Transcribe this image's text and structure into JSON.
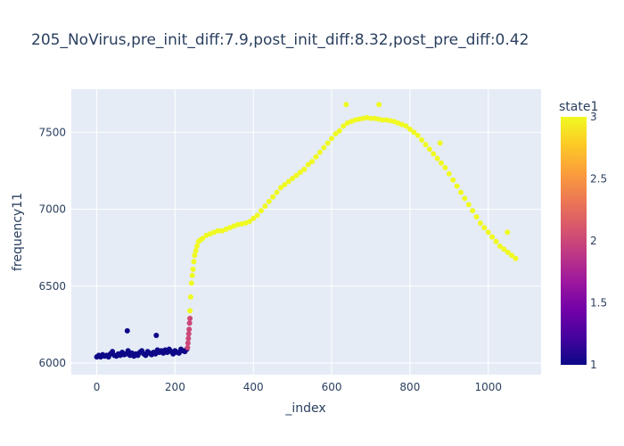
{
  "chart_data": {
    "type": "scatter",
    "title": "205_NoVirus,pre_init_diff:7.9,post_init_diff:8.32,post_pre_diff:0.42",
    "xlabel": "_index",
    "ylabel": "frequency11",
    "xlim": [
      -65,
      1135
    ],
    "ylim": [
      5925,
      7780
    ],
    "xticks": [
      0,
      200,
      400,
      600,
      800,
      1000
    ],
    "yticks": [
      6000,
      6500,
      7000,
      7500
    ],
    "grid": true,
    "plot_background": "#E5ECF6",
    "colorbar": {
      "title": "state1",
      "range": [
        1,
        3
      ],
      "ticks": [
        1,
        1.5,
        2,
        2.5,
        3
      ],
      "tick_labels": [
        "1",
        "1.5",
        "2",
        "2.5",
        "3"
      ],
      "colorscale": [
        "#0d0887",
        "#46039f",
        "#7201a8",
        "#9c179e",
        "#bd3786",
        "#d8576b",
        "#ed7953",
        "#fb9f3a",
        "#fdca26",
        "#f0f921"
      ]
    },
    "series": [
      {
        "state": 1,
        "color": "#0d0887",
        "x": [
          0,
          5,
          10,
          15,
          20,
          25,
          30,
          35,
          40,
          45,
          50,
          55,
          60,
          65,
          70,
          75,
          78,
          80,
          85,
          90,
          95,
          100,
          105,
          110,
          115,
          120,
          125,
          130,
          135,
          140,
          145,
          150,
          152,
          155,
          160,
          165,
          170,
          175,
          180,
          185,
          190,
          195,
          200,
          205,
          210,
          215,
          220,
          225,
          230
        ],
        "y": [
          6040,
          6050,
          6040,
          6055,
          6045,
          6050,
          6040,
          6060,
          6075,
          6050,
          6045,
          6060,
          6050,
          6070,
          6055,
          6060,
          6210,
          6080,
          6050,
          6065,
          6045,
          6060,
          6050,
          6070,
          6080,
          6060,
          6050,
          6075,
          6065,
          6055,
          6070,
          6060,
          6180,
          6085,
          6070,
          6080,
          6065,
          6085,
          6070,
          6090,
          6075,
          6060,
          6080,
          6070,
          6065,
          6090,
          6080,
          6075,
          6090
        ]
      },
      {
        "state": 2,
        "color": "#cc4778",
        "x": [
          232,
          233,
          234,
          235,
          236,
          237,
          238
        ],
        "y": [
          6100,
          6130,
          6160,
          6190,
          6220,
          6260,
          6290
        ]
      },
      {
        "state": 3,
        "color": "#f0f921",
        "x": [
          238,
          240,
          242,
          244,
          246,
          248,
          250,
          253,
          256,
          260,
          265,
          270,
          280,
          290,
          300,
          310,
          320,
          330,
          340,
          350,
          360,
          370,
          380,
          390,
          400,
          410,
          420,
          430,
          440,
          450,
          460,
          470,
          480,
          490,
          500,
          510,
          520,
          530,
          540,
          550,
          560,
          570,
          580,
          590,
          600,
          610,
          620,
          630,
          640,
          650,
          660,
          670,
          680,
          690,
          700,
          710,
          720,
          730,
          740,
          750,
          760,
          770,
          780,
          790,
          800,
          810,
          820,
          830,
          840,
          850,
          860,
          870,
          880,
          890,
          900,
          910,
          920,
          930,
          940,
          950,
          960,
          970,
          980,
          990,
          1000,
          1010,
          1020,
          1030,
          1040,
          1050,
          1060,
          1070,
          637,
          721,
          877,
          1049
        ],
        "y": [
          6340,
          6430,
          6520,
          6570,
          6610,
          6660,
          6700,
          6730,
          6760,
          6790,
          6800,
          6810,
          6830,
          6840,
          6850,
          6860,
          6860,
          6870,
          6880,
          6890,
          6900,
          6905,
          6910,
          6920,
          6940,
          6960,
          6990,
          7020,
          7050,
          7080,
          7110,
          7140,
          7160,
          7180,
          7200,
          7220,
          7240,
          7260,
          7290,
          7310,
          7340,
          7370,
          7400,
          7430,
          7460,
          7490,
          7510,
          7540,
          7560,
          7570,
          7580,
          7585,
          7590,
          7595,
          7590,
          7590,
          7585,
          7580,
          7580,
          7575,
          7570,
          7560,
          7550,
          7540,
          7520,
          7500,
          7480,
          7450,
          7420,
          7390,
          7360,
          7330,
          7300,
          7270,
          7230,
          7190,
          7150,
          7110,
          7070,
          7030,
          6990,
          6950,
          6910,
          6880,
          6850,
          6820,
          6790,
          6760,
          6740,
          6720,
          6700,
          6680,
          7680,
          7680,
          7430,
          6850
        ]
      }
    ]
  }
}
